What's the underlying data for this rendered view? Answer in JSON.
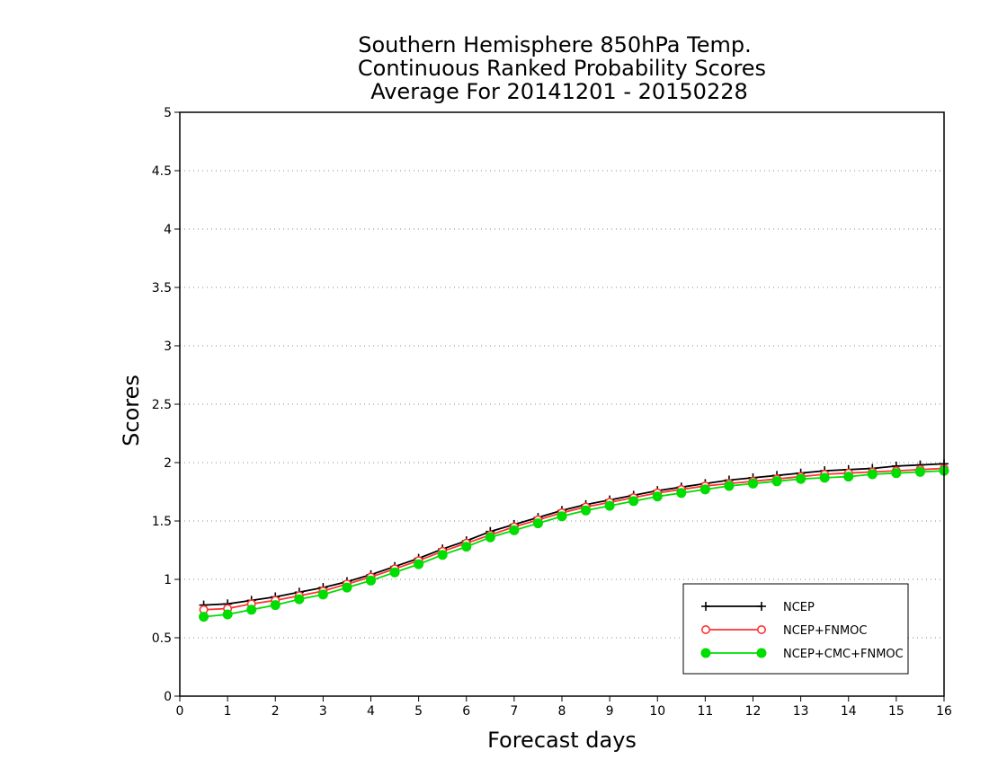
{
  "chart_data": {
    "type": "line",
    "title": [
      "Southern Hemisphere 850hPa Temp.",
      "Continuous Ranked Probability Scores",
      "Average For 20141201 - 20150228"
    ],
    "xlabel": "Forecast days",
    "ylabel": "Scores",
    "xlim": [
      0,
      16
    ],
    "ylim": [
      0,
      5
    ],
    "xticks": [
      0,
      1,
      2,
      3,
      4,
      5,
      6,
      7,
      8,
      9,
      10,
      11,
      12,
      13,
      14,
      15,
      16
    ],
    "xtick_labels": [
      "0",
      "1",
      "2",
      "3",
      "4",
      "5",
      "6",
      "7",
      "8",
      "9",
      "10",
      "11",
      "12",
      "13",
      "14",
      "15",
      "16"
    ],
    "yticks": [
      0,
      0.5,
      1,
      1.5,
      2,
      2.5,
      3,
      3.5,
      4,
      4.5,
      5
    ],
    "ytick_labels": [
      "0",
      "0.5",
      "1",
      "1.5",
      "2",
      "2.5",
      "3",
      "3.5",
      "4",
      "4.5",
      "5"
    ],
    "grid": "horizontal dotted",
    "legend_position": "bottom-right",
    "x": [
      0.5,
      1,
      1.5,
      2,
      2.5,
      3,
      3.5,
      4,
      4.5,
      5,
      5.5,
      6,
      6.5,
      7,
      7.5,
      8,
      8.5,
      9,
      9.5,
      10,
      10.5,
      11,
      11.5,
      12,
      12.5,
      13,
      13.5,
      14,
      14.5,
      15,
      15.5,
      16
    ],
    "series": [
      {
        "name": "NCEP",
        "color": "#000000",
        "marker": "plus",
        "values": [
          0.78,
          0.79,
          0.82,
          0.85,
          0.89,
          0.93,
          0.98,
          1.04,
          1.11,
          1.18,
          1.26,
          1.33,
          1.41,
          1.47,
          1.53,
          1.59,
          1.64,
          1.68,
          1.72,
          1.76,
          1.79,
          1.82,
          1.85,
          1.87,
          1.89,
          1.91,
          1.93,
          1.94,
          1.95,
          1.97,
          1.98,
          1.99
        ]
      },
      {
        "name": "NCEP+FNMOC",
        "color": "#ff3333",
        "marker": "open-circle",
        "values": [
          0.74,
          0.75,
          0.79,
          0.82,
          0.86,
          0.9,
          0.96,
          1.02,
          1.09,
          1.16,
          1.24,
          1.31,
          1.38,
          1.45,
          1.51,
          1.57,
          1.62,
          1.66,
          1.7,
          1.74,
          1.77,
          1.8,
          1.82,
          1.84,
          1.86,
          1.88,
          1.9,
          1.91,
          1.92,
          1.93,
          1.94,
          1.95
        ]
      },
      {
        "name": "NCEP+CMC+FNMOC",
        "color": "#00dd00",
        "marker": "filled-circle",
        "values": [
          0.68,
          0.7,
          0.74,
          0.78,
          0.83,
          0.87,
          0.93,
          0.99,
          1.06,
          1.13,
          1.21,
          1.28,
          1.36,
          1.42,
          1.48,
          1.54,
          1.59,
          1.63,
          1.67,
          1.71,
          1.74,
          1.77,
          1.8,
          1.82,
          1.84,
          1.86,
          1.87,
          1.88,
          1.9,
          1.91,
          1.92,
          1.93
        ]
      }
    ]
  }
}
